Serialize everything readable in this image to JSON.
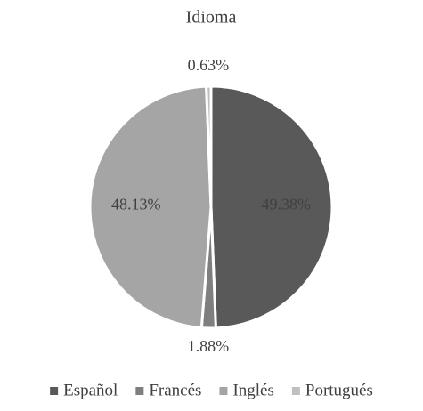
{
  "chart_data": {
    "type": "pie",
    "title": "Idioma",
    "categories": [
      "Español",
      "Francés",
      "Inglés",
      "Portugués"
    ],
    "values": [
      49.38,
      1.88,
      48.13,
      0.63
    ],
    "value_labels": [
      "49.38%",
      "1.88%",
      "48.13%",
      "0.63%"
    ],
    "colors": [
      "#595959",
      "#7f7f7f",
      "#a5a5a5",
      "#bfbfbf"
    ],
    "legend": "bottom"
  }
}
